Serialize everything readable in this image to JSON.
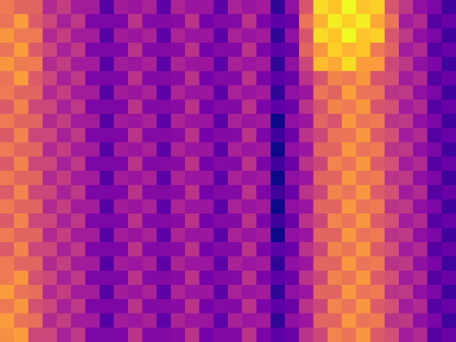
{
  "chart_data": {
    "type": "heatmap",
    "tick_labels": false,
    "cells": [
      [
        67,
        60,
        60,
        40,
        47,
        35,
        35,
        15,
        35,
        33,
        37,
        17,
        38,
        33,
        33,
        17,
        37,
        33,
        35,
        7,
        30,
        55,
        93,
        87,
        100,
        87,
        90,
        55,
        45,
        30,
        25,
        10
      ],
      [
        65,
        77,
        57,
        50,
        37,
        45,
        25,
        25,
        25,
        43,
        27,
        27,
        28,
        43,
        23,
        27,
        27,
        43,
        25,
        17,
        20,
        65,
        83,
        97,
        90,
        97,
        80,
        65,
        35,
        40,
        15,
        20
      ],
      [
        75,
        67,
        67,
        40,
        47,
        35,
        35,
        15,
        35,
        33,
        37,
        17,
        38,
        33,
        33,
        17,
        37,
        33,
        35,
        7,
        30,
        55,
        93,
        87,
        100,
        87,
        90,
        55,
        45,
        30,
        25,
        10
      ],
      [
        65,
        77,
        57,
        50,
        37,
        45,
        25,
        25,
        25,
        43,
        27,
        27,
        28,
        43,
        23,
        27,
        27,
        43,
        25,
        17,
        20,
        60,
        75,
        90,
        83,
        87,
        67,
        60,
        35,
        40,
        15,
        20
      ],
      [
        75,
        67,
        67,
        40,
        47,
        35,
        35,
        15,
        35,
        33,
        37,
        17,
        38,
        33,
        33,
        17,
        37,
        33,
        35,
        7,
        30,
        50,
        85,
        80,
        93,
        77,
        77,
        50,
        45,
        30,
        25,
        10
      ],
      [
        65,
        77,
        57,
        50,
        37,
        45,
        25,
        25,
        25,
        43,
        27,
        27,
        28,
        43,
        23,
        27,
        27,
        43,
        25,
        17,
        20,
        43,
        55,
        70,
        67,
        75,
        55,
        53,
        35,
        40,
        15,
        20
      ],
      [
        67,
        60,
        60,
        40,
        47,
        35,
        35,
        15,
        35,
        33,
        37,
        17,
        38,
        33,
        33,
        17,
        37,
        33,
        35,
        7,
        30,
        33,
        65,
        60,
        77,
        65,
        65,
        43,
        45,
        30,
        25,
        10
      ],
      [
        57,
        70,
        50,
        50,
        37,
        45,
        25,
        25,
        25,
        43,
        27,
        27,
        28,
        43,
        23,
        27,
        27,
        43,
        25,
        17,
        20,
        43,
        55,
        70,
        67,
        75,
        55,
        53,
        35,
        40,
        15,
        20
      ],
      [
        67,
        60,
        60,
        40,
        47,
        35,
        35,
        15,
        35,
        33,
        37,
        17,
        38,
        33,
        33,
        17,
        37,
        33,
        35,
        0,
        30,
        33,
        60,
        55,
        75,
        65,
        67,
        43,
        45,
        30,
        25,
        10
      ],
      [
        57,
        70,
        50,
        50,
        37,
        45,
        25,
        25,
        25,
        43,
        27,
        27,
        28,
        43,
        23,
        27,
        27,
        43,
        25,
        10,
        20,
        43,
        50,
        65,
        65,
        75,
        57,
        53,
        35,
        40,
        15,
        20
      ],
      [
        67,
        60,
        60,
        40,
        47,
        35,
        35,
        15,
        35,
        33,
        37,
        17,
        38,
        33,
        33,
        17,
        37,
        33,
        35,
        0,
        30,
        33,
        60,
        60,
        75,
        65,
        67,
        43,
        45,
        30,
        25,
        10
      ],
      [
        57,
        70,
        50,
        50,
        37,
        45,
        25,
        25,
        25,
        43,
        27,
        27,
        28,
        43,
        23,
        27,
        27,
        43,
        25,
        10,
        20,
        43,
        50,
        70,
        65,
        75,
        57,
        53,
        35,
        40,
        15,
        20
      ],
      [
        67,
        60,
        60,
        40,
        47,
        35,
        35,
        15,
        35,
        33,
        37,
        17,
        38,
        33,
        33,
        17,
        37,
        33,
        35,
        0,
        30,
        33,
        60,
        60,
        75,
        65,
        67,
        43,
        45,
        30,
        25,
        10
      ],
      [
        57,
        70,
        50,
        50,
        37,
        45,
        25,
        25,
        25,
        43,
        27,
        27,
        28,
        43,
        23,
        27,
        27,
        43,
        25,
        10,
        20,
        43,
        50,
        70,
        65,
        75,
        57,
        53,
        35,
        40,
        15,
        20
      ],
      [
        67,
        60,
        60,
        40,
        47,
        35,
        35,
        15,
        35,
        33,
        37,
        17,
        38,
        33,
        33,
        17,
        37,
        33,
        35,
        0,
        30,
        33,
        60,
        60,
        75,
        65,
        67,
        43,
        45,
        30,
        25,
        10
      ],
      [
        57,
        70,
        50,
        50,
        37,
        45,
        25,
        25,
        25,
        43,
        27,
        27,
        28,
        43,
        23,
        27,
        27,
        43,
        25,
        10,
        20,
        43,
        50,
        70,
        65,
        75,
        57,
        53,
        35,
        40,
        15,
        20
      ],
      [
        67,
        60,
        60,
        40,
        47,
        35,
        35,
        15,
        35,
        33,
        37,
        17,
        38,
        33,
        33,
        17,
        37,
        33,
        35,
        0,
        30,
        33,
        60,
        60,
        75,
        65,
        67,
        43,
        45,
        30,
        25,
        10
      ],
      [
        57,
        70,
        50,
        50,
        37,
        45,
        25,
        25,
        25,
        43,
        27,
        27,
        28,
        43,
        23,
        27,
        27,
        43,
        25,
        17,
        20,
        43,
        50,
        70,
        65,
        75,
        57,
        53,
        35,
        40,
        15,
        20
      ],
      [
        67,
        60,
        60,
        40,
        47,
        35,
        35,
        15,
        35,
        33,
        37,
        17,
        38,
        33,
        33,
        17,
        37,
        33,
        35,
        7,
        30,
        33,
        60,
        60,
        75,
        65,
        67,
        43,
        45,
        30,
        25,
        10
      ],
      [
        67,
        75,
        53,
        50,
        37,
        45,
        25,
        25,
        25,
        43,
        27,
        27,
        28,
        43,
        23,
        27,
        27,
        43,
        25,
        17,
        20,
        43,
        50,
        70,
        65,
        75,
        57,
        53,
        35,
        40,
        15,
        20
      ],
      [
        77,
        65,
        63,
        40,
        47,
        35,
        35,
        15,
        35,
        33,
        37,
        17,
        38,
        33,
        33,
        17,
        37,
        33,
        35,
        7,
        30,
        33,
        60,
        60,
        75,
        65,
        67,
        43,
        45,
        30,
        25,
        10
      ],
      [
        67,
        75,
        53,
        50,
        37,
        45,
        25,
        25,
        25,
        43,
        27,
        27,
        28,
        43,
        23,
        27,
        27,
        43,
        25,
        17,
        20,
        43,
        50,
        70,
        65,
        75,
        57,
        53,
        35,
        40,
        15,
        20
      ],
      [
        77,
        65,
        63,
        40,
        47,
        35,
        35,
        15,
        35,
        33,
        37,
        17,
        38,
        33,
        33,
        17,
        37,
        33,
        35,
        7,
        30,
        33,
        60,
        60,
        75,
        65,
        67,
        43,
        45,
        30,
        25,
        10
      ],
      [
        73,
        77,
        50,
        50,
        37,
        45,
        25,
        25,
        25,
        43,
        27,
        27,
        28,
        43,
        23,
        27,
        27,
        43,
        25,
        17,
        20,
        43,
        50,
        70,
        65,
        75,
        57,
        53,
        35,
        40,
        15,
        20
      ]
    ]
  }
}
